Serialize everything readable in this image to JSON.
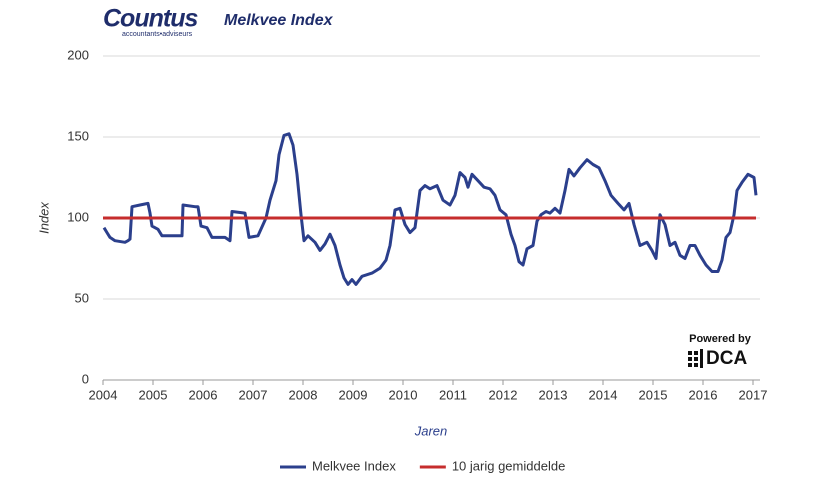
{
  "brand": {
    "name": "Countus",
    "tagline": "accountants•adviseurs",
    "powered_by": "Powered by",
    "powered_name": "DCA"
  },
  "chart_data": {
    "type": "line",
    "title": "Melkvee Index",
    "x_label": "Jaren",
    "y_label": "Index",
    "xlim": [
      2004,
      2017
    ],
    "xticks": [
      2004,
      2005,
      2006,
      2007,
      2008,
      2009,
      2010,
      2011,
      2012,
      2013,
      2014,
      2015,
      2016,
      2017
    ],
    "ylim": [
      0,
      200
    ],
    "yticks": [
      0,
      50,
      100,
      150,
      200
    ],
    "grid": true,
    "legend": "bottom",
    "series": [
      {
        "name": "Melkvee Index",
        "color": "#2b3f8c",
        "x": [
          2004.02,
          2004.08,
          2004.14,
          2004.24,
          2004.44,
          2004.5,
          2004.54,
          2004.58,
          2004.74,
          2004.9,
          2004.94,
          2004.98,
          2005.1,
          2005.18,
          2005.5,
          2005.58,
          2005.6,
          2005.84,
          2005.9,
          2005.96,
          2006.08,
          2006.18,
          2006.44,
          2006.54,
          2006.58,
          2006.84,
          2006.92,
          2007.1,
          2007.26,
          2007.34,
          2007.46,
          2007.52,
          2007.62,
          2007.72,
          2007.8,
          2007.88,
          2007.96,
          2008.02,
          2008.1,
          2008.24,
          2008.34,
          2008.44,
          2008.54,
          2008.64,
          2008.74,
          2008.82,
          2008.9,
          2008.98,
          2009.06,
          2009.18,
          2009.38,
          2009.54,
          2009.66,
          2009.74,
          2009.84,
          2009.94,
          2010.04,
          2010.14,
          2010.24,
          2010.34,
          2010.44,
          2010.54,
          2010.68,
          2010.8,
          2010.94,
          2011.04,
          2011.14,
          2011.24,
          2011.3,
          2011.38,
          2011.5,
          2011.62,
          2011.74,
          2011.84,
          2011.94,
          2012.06,
          2012.16,
          2012.24,
          2012.32,
          2012.4,
          2012.48,
          2012.6,
          2012.68,
          2012.76,
          2012.86,
          2012.94,
          2013.04,
          2013.14,
          2013.24,
          2013.32,
          2013.42,
          2013.54,
          2013.68,
          2013.8,
          2013.92,
          2014.04,
          2014.16,
          2014.3,
          2014.42,
          2014.52,
          2014.62,
          2014.74,
          2014.88,
          2014.98,
          2015.06,
          2015.14,
          2015.24,
          2015.34,
          2015.44,
          2015.54,
          2015.64,
          2015.74,
          2015.84,
          2015.94,
          2016.06,
          2016.18,
          2016.3,
          2016.38,
          2016.46,
          2016.54,
          2016.62,
          2016.68,
          2016.78,
          2016.9,
          2017.02,
          2017.06
        ],
        "values": [
          94,
          91,
          88,
          86,
          85,
          86,
          87,
          107,
          108,
          109,
          103,
          95,
          93,
          89,
          89,
          89,
          108,
          107,
          107,
          95,
          94,
          88,
          88,
          86,
          104,
          103,
          88,
          89,
          100,
          111,
          123,
          139,
          151,
          152,
          145,
          127,
          102,
          86,
          89,
          85,
          80,
          84,
          90,
          83,
          71,
          63,
          59,
          62,
          59,
          64,
          66,
          69,
          74,
          83,
          105,
          106,
          96,
          91,
          94,
          117,
          120,
          118,
          120,
          111,
          108,
          114,
          128,
          125,
          119,
          127,
          123,
          119,
          118,
          114,
          105,
          102,
          90,
          83,
          73,
          71,
          81,
          83,
          98,
          102,
          104,
          103,
          106,
          103,
          117,
          130,
          126,
          131,
          136,
          133,
          131,
          123,
          114,
          109,
          105,
          109,
          96,
          83,
          85,
          80,
          75,
          102,
          96,
          83,
          85,
          77,
          75,
          83,
          83,
          77,
          71,
          67,
          67,
          74,
          88,
          91,
          102,
          117,
          122,
          127,
          125,
          114
        ]
      },
      {
        "name": "10 jarig gemiddelde",
        "color": "#c62d2d",
        "x": [
          2004,
          2017.06
        ],
        "values": [
          100,
          100
        ]
      }
    ]
  }
}
